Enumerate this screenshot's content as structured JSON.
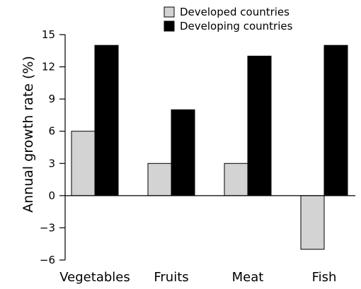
{
  "chart_data": {
    "type": "bar",
    "title": "",
    "xlabel": "",
    "ylabel": "Annual growth rate (%)",
    "categories": [
      "Vegetables",
      "Fruits",
      "Meat",
      "Fish"
    ],
    "series": [
      {
        "name": "Developed countries",
        "color": "#d3d3d3",
        "values": [
          6,
          3,
          3,
          -5
        ]
      },
      {
        "name": "Developing countries",
        "color": "#000000",
        "values": [
          14,
          8,
          13,
          14
        ]
      }
    ],
    "ylim": [
      -6,
      15
    ],
    "yticks": [
      -6,
      -3,
      0,
      3,
      6,
      9,
      12,
      15
    ],
    "ytick_labels": [
      "−6",
      "−3",
      "0",
      "3",
      "6",
      "9",
      "12",
      "15"
    ],
    "grid": false,
    "legend_position": "top-right"
  }
}
